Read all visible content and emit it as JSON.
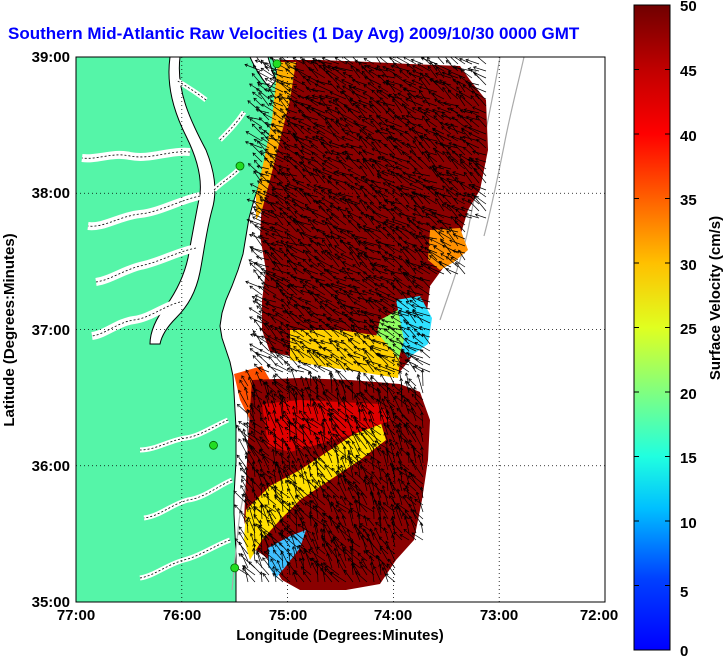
{
  "title": "Southern Mid-Atlantic Raw Velocities (1 Day Avg) 2009/10/30 0000 GMT",
  "chart_data": {
    "type": "heatmap",
    "subtype": "surface-current-vector-map",
    "xlabel": "Longitude (Degrees:Minutes)",
    "ylabel": "Latitude (Degrees:Minutes)",
    "x_ticks": [
      "77:00",
      "76:00",
      "75:00",
      "74:00",
      "73:00",
      "72:00"
    ],
    "y_ticks": [
      "39:00",
      "38:00",
      "37:00",
      "36:00",
      "35:00"
    ],
    "xlim": [
      -77,
      -72
    ],
    "ylim": [
      35,
      39
    ],
    "grid": true,
    "colorbar": {
      "label": "Surface Velocity (cm/s)",
      "range": [
        0,
        50
      ],
      "ticks": [
        "0",
        "5",
        "10",
        "15",
        "20",
        "25",
        "30",
        "35",
        "40",
        "45",
        "50"
      ],
      "colormap": "jet"
    },
    "colors": {
      "land": "#55f5a8",
      "water": "#ffffff",
      "coast": "#000000",
      "arrows": "#000000",
      "stations": "#22dd22",
      "bathymetry": "#aaaaaa",
      "title": "#0000ff"
    },
    "radar_stations": [
      [
        -75.1,
        38.95
      ],
      [
        -75.45,
        38.2
      ],
      [
        -75.7,
        36.15
      ],
      [
        -75.5,
        35.25
      ]
    ]
  }
}
